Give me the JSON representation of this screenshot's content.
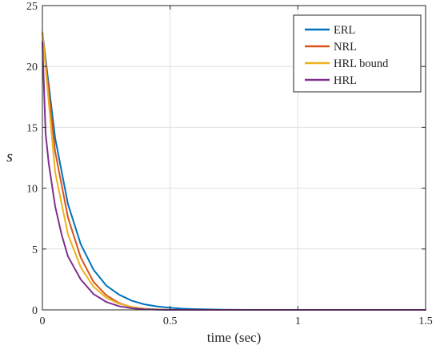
{
  "chart_data": {
    "type": "line",
    "title": "",
    "xlabel": "time (sec)",
    "ylabel": "s",
    "xlim": [
      0,
      1.5
    ],
    "ylim": [
      0,
      25
    ],
    "xticks": [
      0,
      0.5,
      1,
      1.5
    ],
    "xtick_labels": [
      "0",
      "0.5",
      "1",
      "1.5"
    ],
    "yticks": [
      0,
      5,
      10,
      15,
      20,
      25
    ],
    "ytick_labels": [
      "0",
      "5",
      "10",
      "15",
      "20",
      "25"
    ],
    "grid": true,
    "legend_position": "top-right",
    "series": [
      {
        "name": "ERL",
        "color": "#0072BD",
        "x": [
          0,
          0.05,
          0.1,
          0.15,
          0.2,
          0.25,
          0.3,
          0.35,
          0.4,
          0.45,
          0.5,
          0.55,
          0.6,
          0.7,
          0.8,
          1.0,
          1.5
        ],
        "y": [
          22.8,
          14.1,
          8.7,
          5.4,
          3.3,
          2.0,
          1.25,
          0.75,
          0.45,
          0.28,
          0.17,
          0.1,
          0.06,
          0.02,
          0.0,
          0.0,
          0.0
        ]
      },
      {
        "name": "NRL",
        "color": "#D95319",
        "x": [
          0,
          0.05,
          0.1,
          0.15,
          0.2,
          0.25,
          0.3,
          0.35,
          0.4,
          0.45,
          0.5,
          0.6,
          0.8,
          1.0,
          1.5
        ],
        "y": [
          22.8,
          13.0,
          7.6,
          4.3,
          2.3,
          1.2,
          0.55,
          0.22,
          0.08,
          0.03,
          0.0,
          0.0,
          0.0,
          0.0,
          0.0
        ]
      },
      {
        "name": "HRL bound",
        "color": "#EDB120",
        "x": [
          0,
          0.05,
          0.1,
          0.15,
          0.2,
          0.25,
          0.3,
          0.35,
          0.4,
          0.45,
          0.5,
          0.6,
          0.8,
          1.0,
          1.5
        ],
        "y": [
          22.8,
          11.3,
          6.2,
          3.5,
          1.9,
          1.0,
          0.5,
          0.25,
          0.1,
          0.04,
          0.0,
          0.0,
          0.0,
          0.0,
          0.0
        ]
      },
      {
        "name": "HRL",
        "color": "#7E2F8E",
        "x": [
          0,
          0.0125,
          0.025,
          0.05,
          0.075,
          0.1,
          0.15,
          0.2,
          0.25,
          0.3,
          0.35,
          0.4,
          0.45,
          0.5,
          0.6,
          0.8,
          1.0,
          1.5
        ],
        "y": [
          22.0,
          14.5,
          12.0,
          8.5,
          6.2,
          4.4,
          2.5,
          1.3,
          0.65,
          0.3,
          0.13,
          0.05,
          0.02,
          0.0,
          0.0,
          0.0,
          0.0,
          0.0
        ]
      }
    ]
  }
}
